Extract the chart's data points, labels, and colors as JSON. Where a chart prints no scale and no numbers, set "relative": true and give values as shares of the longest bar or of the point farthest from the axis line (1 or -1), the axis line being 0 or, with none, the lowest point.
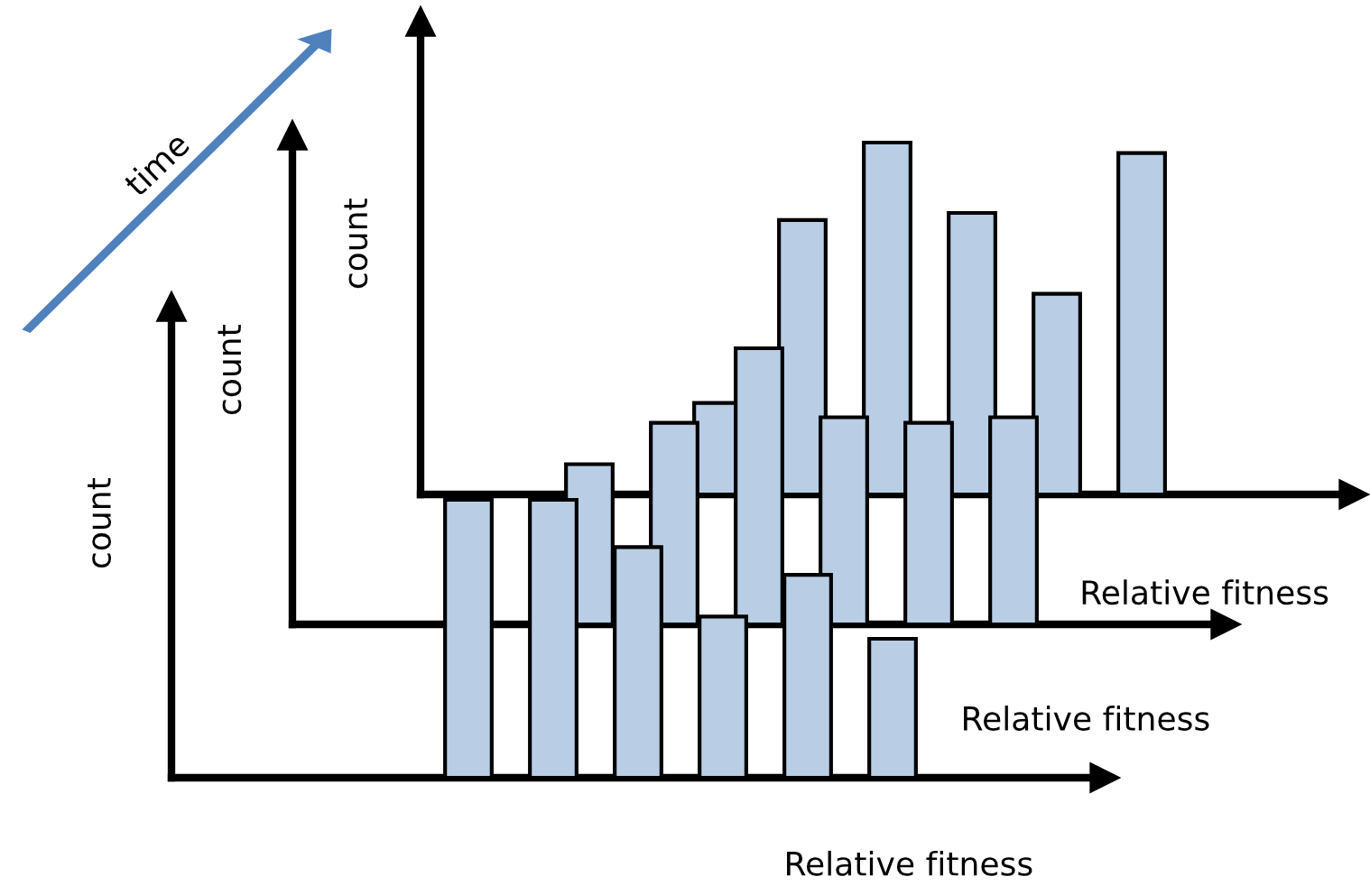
{
  "chart_data": [
    {
      "type": "bar",
      "relative": true,
      "color": "#b9cde5",
      "ylabel": "count",
      "xlabel": "Relative fitness",
      "annotations": [
        "time"
      ],
      "categories": [
        null,
        null,
        null,
        null,
        null,
        null
      ],
      "values": [
        0.26,
        0.78,
        1,
        0.8,
        0.57,
        0.97
      ]
    },
    {
      "type": "bar",
      "relative": true,
      "color": "#b9cde5",
      "ylabel": "count",
      "xlabel": "Relative fitness",
      "categories": [
        null,
        null,
        null,
        null,
        null,
        null
      ],
      "values": [
        0.58,
        0.73,
        1,
        0.75,
        0.73,
        0.75
      ]
    },
    {
      "type": "bar",
      "relative": true,
      "color": "#b9cde5",
      "ylabel": "count",
      "xlabel": "Relative fitness",
      "categories": [
        null,
        null,
        null,
        null,
        null,
        null
      ],
      "values": [
        1,
        1,
        0.83,
        0.58,
        0.73,
        0.5
      ]
    }
  ]
}
